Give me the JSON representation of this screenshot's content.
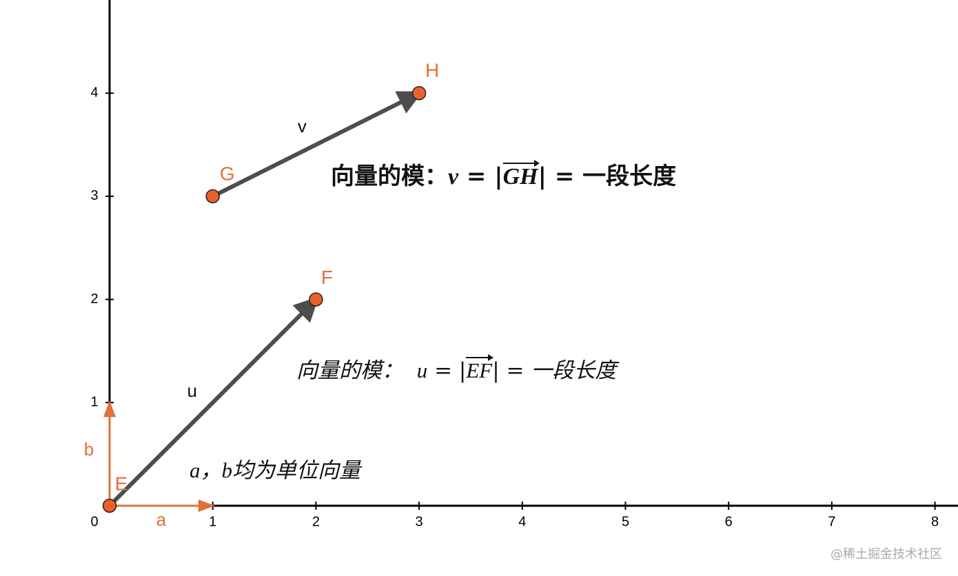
{
  "axes": {
    "xticks": [
      0,
      1,
      2,
      3,
      4,
      5,
      6,
      7,
      8
    ],
    "yticks": [
      1,
      2,
      3,
      4
    ]
  },
  "points": [
    {
      "label": "E",
      "x": 0,
      "y": 0
    },
    {
      "label": "F",
      "x": 2,
      "y": 2
    },
    {
      "label": "G",
      "x": 1,
      "y": 3
    },
    {
      "label": "H",
      "x": 3,
      "y": 4
    }
  ],
  "vectors": [
    {
      "label": "u",
      "from": [
        0,
        0
      ],
      "to": [
        2,
        2
      ],
      "kind": "free"
    },
    {
      "label": "v",
      "from": [
        1,
        3
      ],
      "to": [
        3,
        4
      ],
      "kind": "free"
    },
    {
      "label": "a",
      "from": [
        0,
        0
      ],
      "to": [
        1,
        0
      ],
      "kind": "unit"
    },
    {
      "label": "b",
      "from": [
        0,
        0
      ],
      "to": [
        0,
        1
      ],
      "kind": "unit"
    }
  ],
  "texts": [
    {
      "style": "bold",
      "parts": [
        {
          "t": "向量的模："
        },
        {
          "t": "v",
          "m": "math"
        },
        {
          "t": " = |"
        },
        {
          "t": "GH",
          "m": "vec"
        },
        {
          "t": "| = "
        },
        {
          "t": "一段长度"
        }
      ]
    },
    {
      "style": "italic",
      "parts": [
        {
          "t": "向量的模：  "
        },
        {
          "t": "u",
          "m": "math"
        },
        {
          "t": " = |"
        },
        {
          "t": "EF",
          "m": "vec"
        },
        {
          "t": "| = "
        },
        {
          "t": "一段长度"
        }
      ]
    },
    {
      "style": "italic",
      "parts": [
        {
          "t": "a",
          "m": "math"
        },
        {
          "t": "，"
        },
        {
          "t": "b",
          "m": "math"
        },
        {
          "t": "均为单位向量"
        }
      ]
    }
  ],
  "watermark": "@稀土掘金技术社区"
}
